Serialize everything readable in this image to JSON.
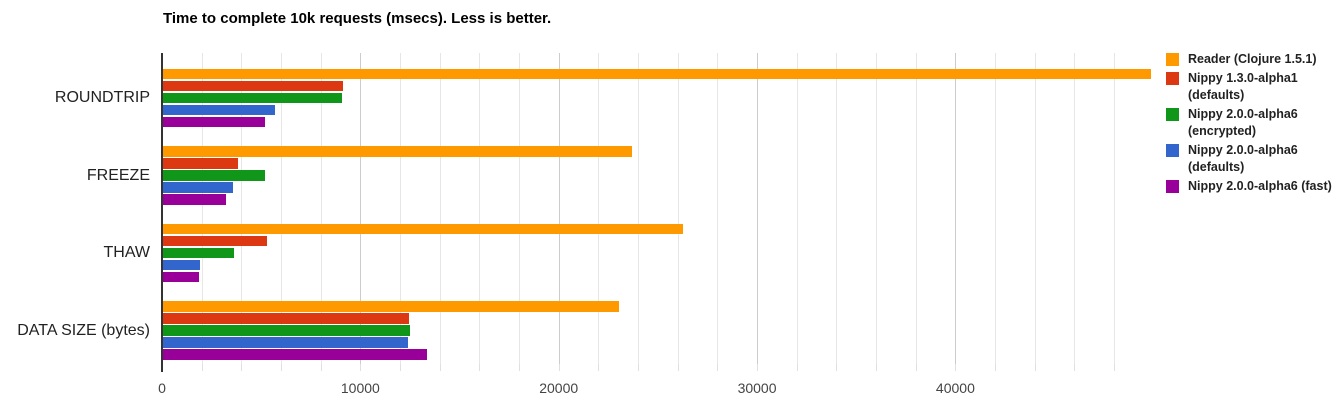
{
  "title": "Time to complete 10k requests (msecs). Less is better.",
  "chart_data": {
    "type": "bar",
    "orientation": "horizontal",
    "title": "Time to complete 10k requests (msecs). Less is better.",
    "xlabel": "",
    "ylabel": "",
    "grid": true,
    "legend_position": "right",
    "categories": [
      "ROUNDTRIP",
      "FREEZE",
      "THAW",
      "DATA SIZE (bytes)"
    ],
    "series": [
      {
        "name": "Reader (Clojure 1.5.1)",
        "legend_lines": [
          "Reader (Clojure 1.5.1)"
        ],
        "color": "#FF9900",
        "values": [
          49820,
          23620,
          26240,
          22980
        ]
      },
      {
        "name": "Nippy 1.3.0-alpha1 (defaults)",
        "legend_lines": [
          "Nippy 1.3.0-alpha1",
          "(defaults)"
        ],
        "color": "#DC3912",
        "values": [
          9060,
          3780,
          5240,
          12420
        ]
      },
      {
        "name": "Nippy 2.0.0-alpha6 (encrypted)",
        "legend_lines": [
          "Nippy 2.0.0-alpha6",
          "(encrypted)"
        ],
        "color": "#109618",
        "values": [
          9010,
          5120,
          3580,
          12460
        ]
      },
      {
        "name": "Nippy 2.0.0-alpha6 (defaults)",
        "legend_lines": [
          "Nippy 2.0.0-alpha6",
          "(defaults)"
        ],
        "color": "#3366CC",
        "values": [
          5660,
          3510,
          1870,
          12360
        ]
      },
      {
        "name": "Nippy 2.0.0-alpha6 (fast)",
        "legend_lines": [
          "Nippy 2.0.0-alpha6 (fast)"
        ],
        "color": "#990099",
        "values": [
          5160,
          3160,
          1800,
          13310
        ]
      }
    ],
    "x_axis": {
      "ticks": [
        0,
        10000,
        20000,
        30000,
        40000
      ],
      "minor_step": 2000,
      "max_visible": 48000,
      "xlim": [
        0,
        48900
      ]
    }
  }
}
